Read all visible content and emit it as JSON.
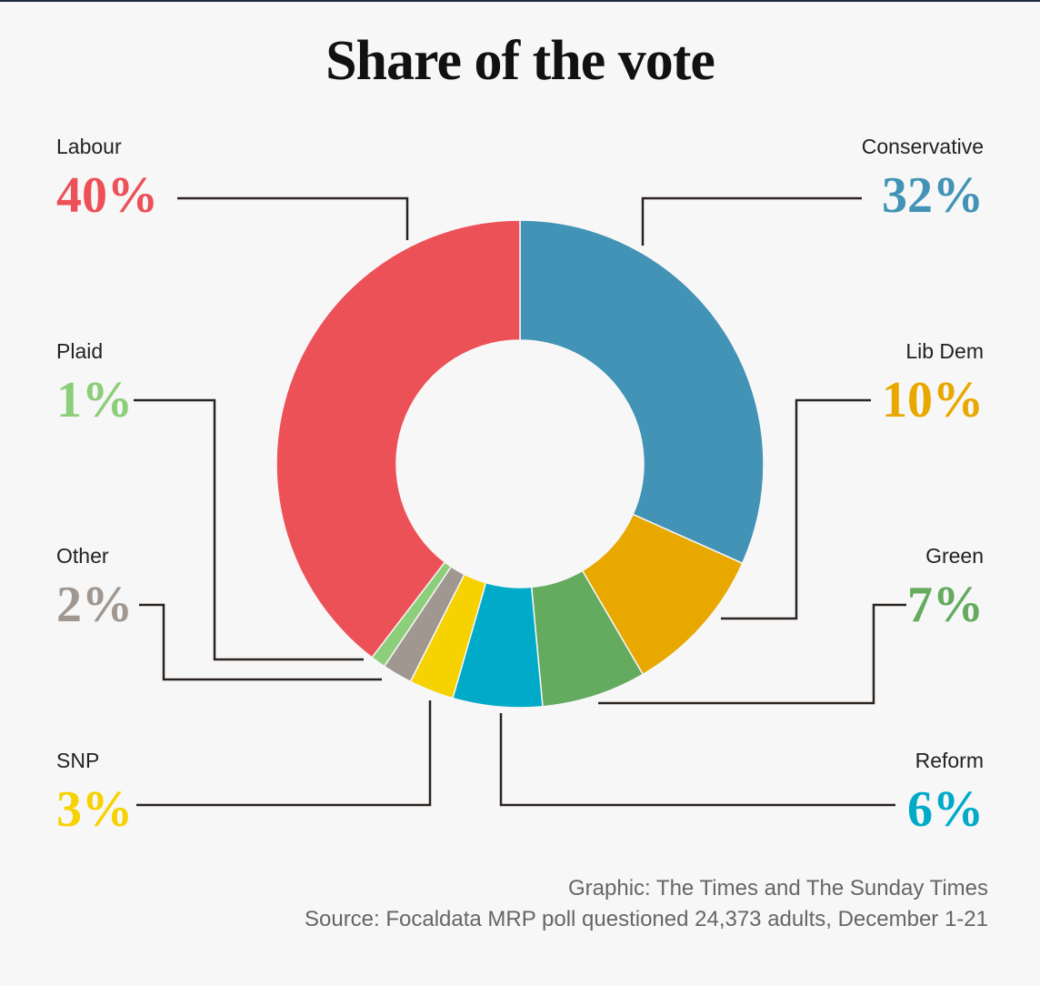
{
  "title": "Share of the vote",
  "chart_data": {
    "type": "pie",
    "title": "Share of the vote",
    "donut": true,
    "slices": [
      {
        "name": "Conservative",
        "value": 32,
        "label": "32%",
        "color": "#4293b5"
      },
      {
        "name": "Lib Dem",
        "value": 10,
        "label": "10%",
        "color": "#e8a800"
      },
      {
        "name": "Green",
        "value": 7,
        "label": "7%",
        "color": "#64aa5f"
      },
      {
        "name": "Reform",
        "value": 6,
        "label": "6%",
        "color": "#00aac8"
      },
      {
        "name": "SNP",
        "value": 3,
        "label": "3%",
        "color": "#f5d200"
      },
      {
        "name": "Other",
        "value": 2,
        "label": "2%",
        "color": "#a09791"
      },
      {
        "name": "Plaid",
        "value": 1,
        "label": "1%",
        "color": "#8cce7a"
      },
      {
        "name": "Labour",
        "value": 40,
        "label": "40%",
        "color": "#ec5158"
      }
    ]
  },
  "credits": {
    "graphic": "Graphic: The Times and The Sunday Times",
    "source": "Source: Focaldata MRP poll questioned 24,373 adults, December 1-21"
  }
}
